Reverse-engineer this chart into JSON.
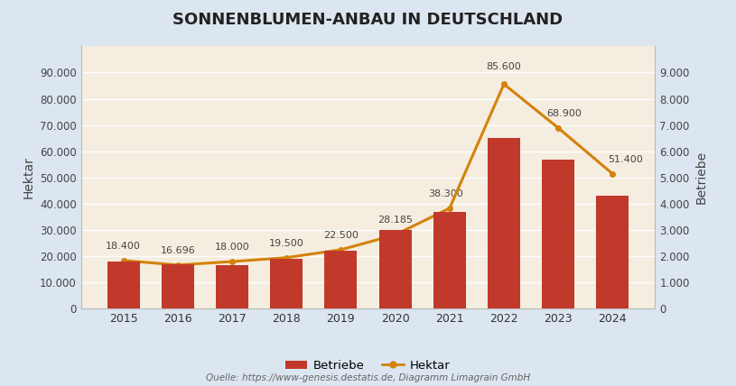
{
  "title": "SONNENBLUMEN-ANBAU IN DEUTSCHLAND",
  "years": [
    2015,
    2016,
    2017,
    2018,
    2019,
    2020,
    2021,
    2022,
    2023,
    2024
  ],
  "betriebe": [
    1800,
    1700,
    1650,
    1900,
    2200,
    3000,
    3700,
    6500,
    5700,
    4300
  ],
  "hektar": [
    18400,
    16696,
    18000,
    19500,
    22500,
    28185,
    38300,
    85600,
    68900,
    51400
  ],
  "hektar_labels": [
    "18.400",
    "16.696",
    "18.000",
    "19.500",
    "22.500",
    "28.185",
    "38.300",
    "85.600",
    "68.900",
    "51.400"
  ],
  "bar_color": "#c0392b",
  "line_color": "#d4820a",
  "ylabel_left": "Hektar",
  "ylabel_right": "Betriebe",
  "ylim_left": [
    0,
    100000
  ],
  "ylim_right": [
    0,
    10000
  ],
  "yticks_left": [
    0,
    10000,
    20000,
    30000,
    40000,
    50000,
    60000,
    70000,
    80000,
    90000
  ],
  "yticks_right": [
    0,
    1000,
    2000,
    3000,
    4000,
    5000,
    6000,
    7000,
    8000,
    9000
  ],
  "ytick_labels_left": [
    "0",
    "10.000",
    "20.000",
    "30.000",
    "40.000",
    "50.000",
    "60.000",
    "70.000",
    "80.000",
    "90.000"
  ],
  "ytick_labels_right": [
    "0",
    "1.000",
    "2.000",
    "3.000",
    "4.000",
    "5.000",
    "6.000",
    "7.000",
    "8.000",
    "9.000"
  ],
  "source_text": "Quelle: https://www-genesis.destatis.de, Diagramm Limagrain GmbH",
  "bg_outer": "#dce6f0",
  "bg_plot": "#f5ede0",
  "legend_betriebe": "Betriebe",
  "legend_hektar": "Hektar",
  "hektar_label_offsets_x": [
    0,
    0,
    0,
    0,
    0,
    0,
    -3,
    0,
    5,
    10
  ],
  "hektar_label_offsets_y": [
    8,
    8,
    8,
    8,
    8,
    8,
    8,
    10,
    8,
    8
  ]
}
